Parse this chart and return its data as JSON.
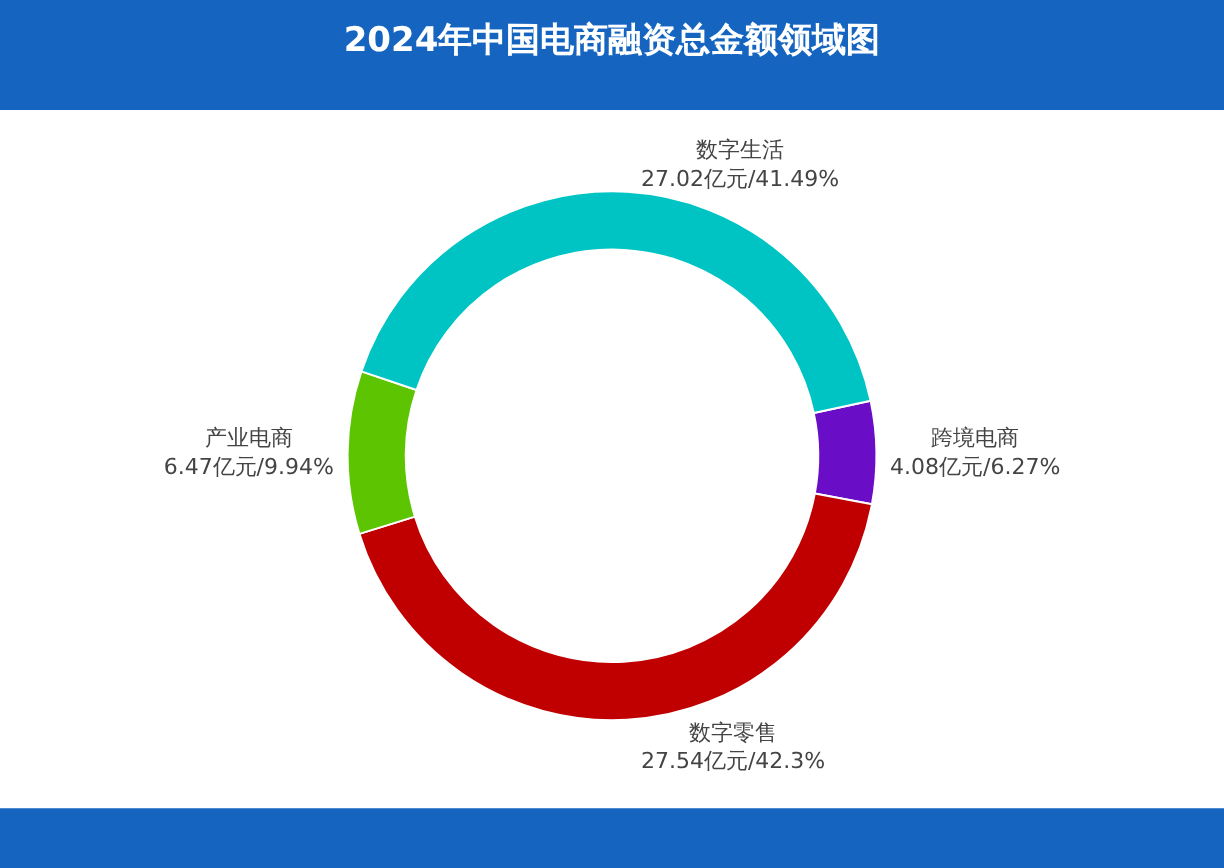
{
  "chart_data": {
    "type": "donut",
    "title": "2024年中国电商融资总金额领域图",
    "categories": [
      "跨境电商",
      "数字零售",
      "产业电商",
      "数字生活"
    ],
    "values": [
      4.08,
      27.54,
      6.47,
      27.02
    ],
    "value_labels": [
      "4.08亿元/6.27%",
      "27.54亿元/42.3%",
      "6.47亿元/9.94%",
      "27.02亿元/41.49%"
    ],
    "colors": [
      "#6a0dc6",
      "#c00000",
      "#5cc400",
      "#00c4c4"
    ],
    "legend": false
  }
}
